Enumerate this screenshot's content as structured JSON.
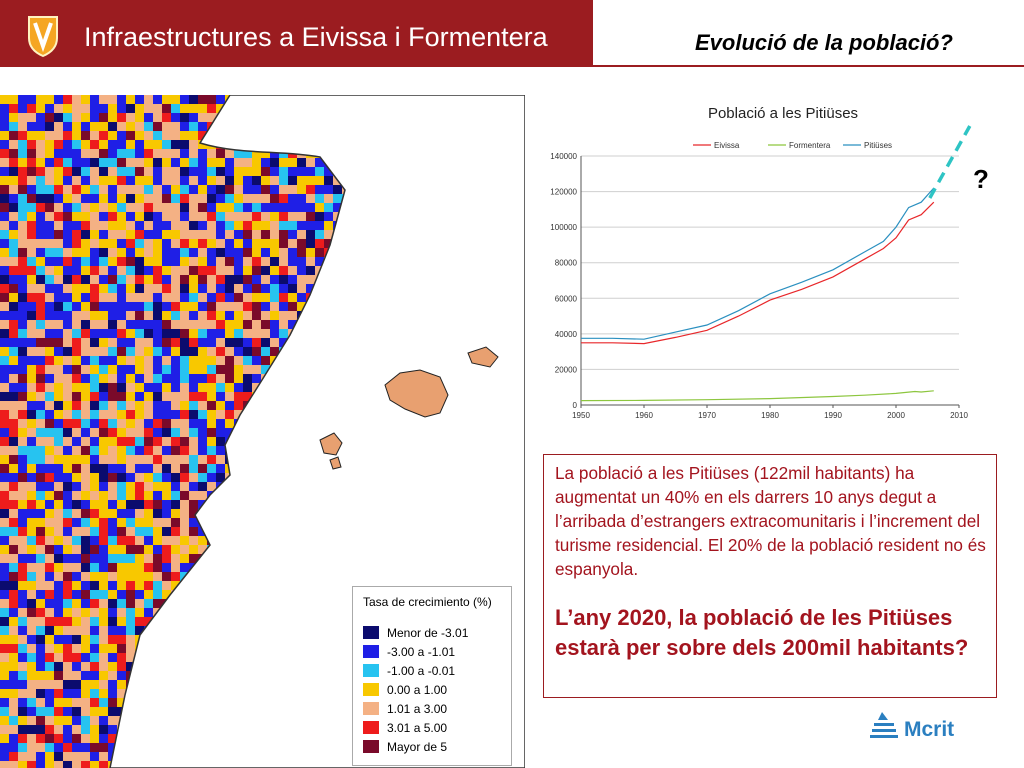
{
  "header": {
    "title": "Infraestructures a Eivissa i Formentera",
    "section_title": "Evolució de la població?",
    "band_color": "#9b1c20"
  },
  "map": {
    "legend": {
      "title": "Tasa de crecimiento (%)",
      "items": [
        {
          "label": "Menor de -3.01",
          "color": "#0b0b6e"
        },
        {
          "label": "-3.00 a -1.01",
          "color": "#1f1fe6"
        },
        {
          "label": "-1.00 a -0.01",
          "color": "#27c3f0"
        },
        {
          "label": "0.00 a  1.00",
          "color": "#f8c800"
        },
        {
          "label": "1.01 a  3.00",
          "color": "#f4b184"
        },
        {
          "label": "3.01 a  5.00",
          "color": "#ee1c1c"
        },
        {
          "label": "Mayor de 5",
          "color": "#7a0a2a"
        }
      ]
    }
  },
  "chart_data": {
    "type": "line",
    "title": "Població a les Pitiüses",
    "xlim": [
      1950,
      2010
    ],
    "ylim": [
      0,
      140000
    ],
    "x_ticks": [
      1950,
      1960,
      1970,
      1980,
      1990,
      2000,
      2010
    ],
    "y_ticks": [
      0,
      20000,
      40000,
      60000,
      80000,
      100000,
      120000,
      140000
    ],
    "grid": true,
    "legend_position": "top",
    "series": [
      {
        "name": "Eivissa",
        "color": "#e8272a",
        "points": [
          [
            1950,
            35000
          ],
          [
            1955,
            35000
          ],
          [
            1960,
            34500
          ],
          [
            1965,
            38000
          ],
          [
            1970,
            42000
          ],
          [
            1975,
            50000
          ],
          [
            1980,
            59000
          ],
          [
            1985,
            65000
          ],
          [
            1990,
            72000
          ],
          [
            1995,
            82000
          ],
          [
            1998,
            88000
          ],
          [
            2000,
            94000
          ],
          [
            2002,
            104000
          ],
          [
            2004,
            107000
          ],
          [
            2006,
            114000
          ]
        ]
      },
      {
        "name": "Formentera",
        "color": "#8dc63f",
        "points": [
          [
            1950,
            2500
          ],
          [
            1960,
            2600
          ],
          [
            1970,
            3000
          ],
          [
            1980,
            3600
          ],
          [
            1990,
            4800
          ],
          [
            1995,
            5500
          ],
          [
            2000,
            6500
          ],
          [
            2003,
            7600
          ],
          [
            2004,
            7300
          ],
          [
            2006,
            8000
          ]
        ]
      },
      {
        "name": "Pitiüses",
        "color": "#2b90c0",
        "points": [
          [
            1950,
            37500
          ],
          [
            1955,
            37500
          ],
          [
            1960,
            37000
          ],
          [
            1965,
            41000
          ],
          [
            1970,
            45000
          ],
          [
            1975,
            53000
          ],
          [
            1980,
            62500
          ],
          [
            1985,
            69000
          ],
          [
            1990,
            76000
          ],
          [
            1995,
            86000
          ],
          [
            1998,
            92000
          ],
          [
            2000,
            100000
          ],
          [
            2002,
            111000
          ],
          [
            2004,
            114000
          ],
          [
            2006,
            122000
          ]
        ]
      }
    ],
    "annotation": {
      "text": "?",
      "color": "#2ec4c4"
    }
  },
  "textbox": {
    "paragraph": "La població a les Pitiüses (122mil habitants) ha augmentat un 40% en els darrers 10 anys degut a l’arribada d’estrangers extracomunitaris i l’increment del turisme residencial. El 20% de la població resident no és espanyola.",
    "question": "L’any 2020, la població de les Pitiüses estarà per sobre dels 200mil habitants?"
  },
  "footer": {
    "brand": "Mcrit"
  }
}
